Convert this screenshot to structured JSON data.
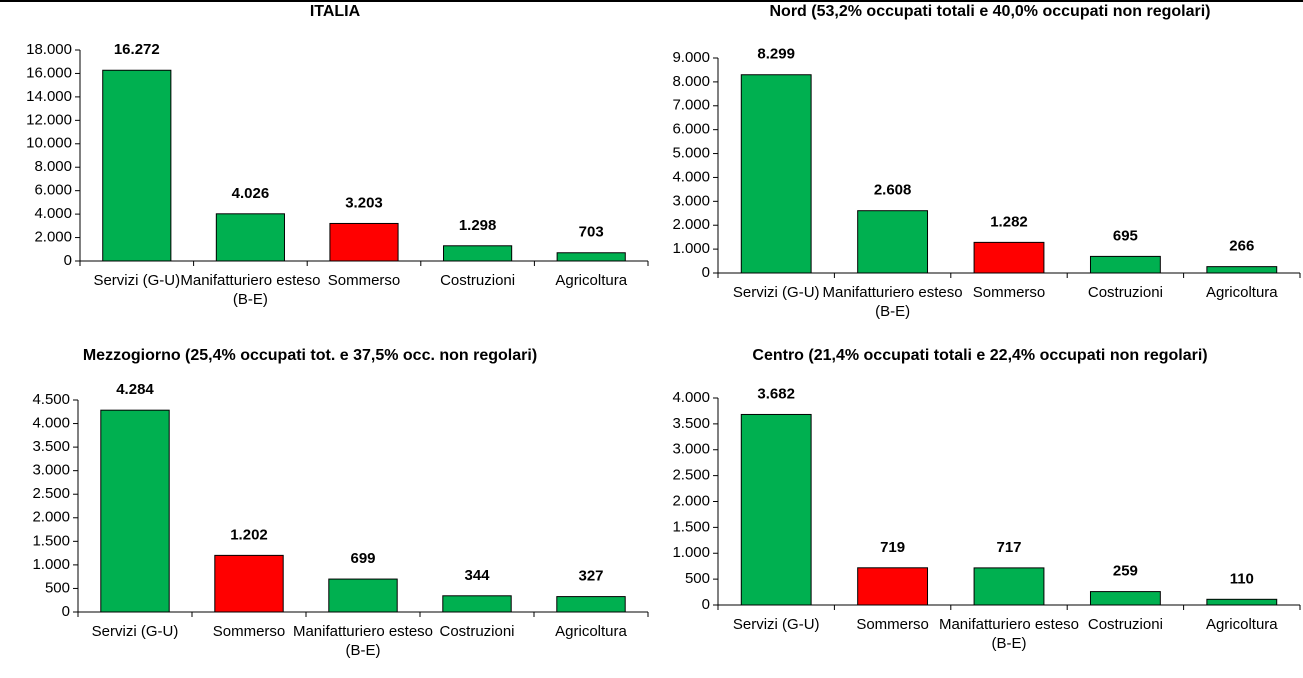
{
  "chart_data": [
    {
      "type": "bar",
      "title": "ITALIA",
      "categories": [
        "Servizi (G-U)",
        "Manifatturiero esteso (B-E)",
        "Sommerso",
        "Costruzioni",
        "Agricoltura"
      ],
      "values": [
        16272,
        4026,
        3203,
        1298,
        703
      ],
      "value_labels": [
        "16.272",
        "4.026",
        "3.203",
        "1.298",
        "703"
      ],
      "colors": [
        "#00b050",
        "#00b050",
        "#ff0000",
        "#00b050",
        "#00b050"
      ],
      "ylim": [
        0,
        18000
      ],
      "yticks": [
        0,
        {
          "value": 2000,
          "label": "2.000"
        },
        {
          "value": 4000,
          "label": "4.000"
        },
        {
          "value": 6000,
          "label": "6.000"
        },
        {
          "value": 8000,
          "label": "8.000"
        },
        {
          "value": 10000,
          "label": "10.000"
        },
        {
          "value": 12000,
          "label": "12.000"
        },
        {
          "value": 14000,
          "label": "14.000"
        },
        {
          "value": 16000,
          "label": "16.000"
        },
        {
          "value": 18000,
          "label": "18.000"
        }
      ],
      "grid": false
    },
    {
      "type": "bar",
      "title": "Nord (53,2% occupati totali e 40,0% occupati non regolari)",
      "categories": [
        "Servizi (G-U)",
        "Manifatturiero esteso (B-E)",
        "Sommerso",
        "Costruzioni",
        "Agricoltura"
      ],
      "values": [
        8299,
        2608,
        1282,
        695,
        266
      ],
      "value_labels": [
        "8.299",
        "2.608",
        "1.282",
        "695",
        "266"
      ],
      "colors": [
        "#00b050",
        "#00b050",
        "#ff0000",
        "#00b050",
        "#00b050"
      ],
      "ylim": [
        0,
        9000
      ],
      "yticks": [
        0,
        {
          "value": 1000,
          "label": "1.000"
        },
        {
          "value": 2000,
          "label": "2.000"
        },
        {
          "value": 3000,
          "label": "3.000"
        },
        {
          "value": 4000,
          "label": "4.000"
        },
        {
          "value": 5000,
          "label": "5.000"
        },
        {
          "value": 6000,
          "label": "6.000"
        },
        {
          "value": 7000,
          "label": "7.000"
        },
        {
          "value": 8000,
          "label": "8.000"
        },
        {
          "value": 9000,
          "label": "9.000"
        }
      ],
      "grid": false
    },
    {
      "type": "bar",
      "title": "Mezzogiorno (25,4% occupati tot. e 37,5% occ. non regolari)",
      "categories": [
        "Servizi (G-U)",
        "Sommerso",
        "Manifatturiero esteso (B-E)",
        "Costruzioni",
        "Agricoltura"
      ],
      "values": [
        4284,
        1202,
        699,
        344,
        327
      ],
      "value_labels": [
        "4.284",
        "1.202",
        "699",
        "344",
        "327"
      ],
      "colors": [
        "#00b050",
        "#ff0000",
        "#00b050",
        "#00b050",
        "#00b050"
      ],
      "ylim": [
        0,
        4500
      ],
      "yticks": [
        0,
        500,
        {
          "value": 1000,
          "label": "1.000"
        },
        {
          "value": 1500,
          "label": "1.500"
        },
        {
          "value": 2000,
          "label": "2.000"
        },
        {
          "value": 2500,
          "label": "2.500"
        },
        {
          "value": 3000,
          "label": "3.000"
        },
        {
          "value": 3500,
          "label": "3.500"
        },
        {
          "value": 4000,
          "label": "4.000"
        },
        {
          "value": 4500,
          "label": "4.500"
        }
      ],
      "grid": false
    },
    {
      "type": "bar",
      "title": "Centro (21,4% occupati totali e 22,4% occupati non regolari)",
      "categories": [
        "Servizi (G-U)",
        "Sommerso",
        "Manifatturiero esteso (B-E)",
        "Costruzioni",
        "Agricoltura"
      ],
      "values": [
        3682,
        719,
        717,
        259,
        110
      ],
      "value_labels": [
        "3.682",
        "719",
        "717",
        "259",
        "110"
      ],
      "colors": [
        "#00b050",
        "#ff0000",
        "#00b050",
        "#00b050",
        "#00b050"
      ],
      "ylim": [
        0,
        4000
      ],
      "yticks": [
        0,
        500,
        {
          "value": 1000,
          "label": "1.000"
        },
        {
          "value": 1500,
          "label": "1.500"
        },
        {
          "value": 2000,
          "label": "2.000"
        },
        {
          "value": 2500,
          "label": "2.500"
        },
        {
          "value": 3000,
          "label": "3.000"
        },
        {
          "value": 3500,
          "label": "3.500"
        },
        {
          "value": 4000,
          "label": "4.000"
        }
      ],
      "grid": false
    }
  ]
}
